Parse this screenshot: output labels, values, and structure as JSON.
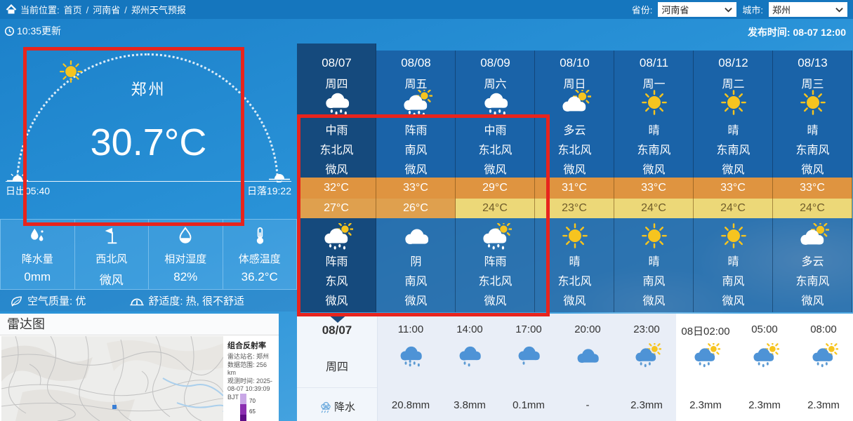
{
  "topbar": {
    "location_label": "当前位置:",
    "breadcrumb": [
      "首页",
      "河南省",
      "郑州天气预报"
    ],
    "separator": "/",
    "province_label": "省份:",
    "province_value": "河南省",
    "city_label": "城市:",
    "city_value": "郑州"
  },
  "statusbar": {
    "update_time": "10:35更新",
    "publish_text": "发布时间: 08-07 12:00"
  },
  "current": {
    "city": "郑州",
    "temperature": "30.7°C",
    "sunrise": "日出05:40",
    "sunset": "日落19:22",
    "stats": [
      {
        "icon": "raindrop-icon",
        "label": "降水量",
        "value": "0mm"
      },
      {
        "icon": "wind-vane-icon",
        "label": "西北风",
        "value": "微风"
      },
      {
        "icon": "humidity-icon",
        "label": "相对湿度",
        "value": "82%"
      },
      {
        "icon": "thermometer-icon",
        "label": "体感温度",
        "value": "36.2°C"
      }
    ],
    "air_quality": "空气质量: 优",
    "comfort": "舒适度: 热, 很不舒适"
  },
  "radar": {
    "title": "雷达图",
    "legend_title": "组合反射率",
    "rows": [
      {
        "label": "雷达站名:",
        "value": "郑州"
      },
      {
        "label": "数据范围:",
        "value": "256 km"
      },
      {
        "label": "观测时间:",
        "value": "2025-08-07 10:39:09 BJT"
      }
    ],
    "scale_labels": [
      "70",
      "65"
    ]
  },
  "forecast": {
    "days": [
      {
        "date": "08/07",
        "weekday": "周四",
        "selected": true,
        "day_icon": "rain-cloud",
        "day_cond": "中雨",
        "day_wind": "东北风",
        "day_lvl": "微风",
        "high": "32°C",
        "low": "27°C",
        "low_style": "orange",
        "night_icon": "rain-cloud-sun",
        "night_cond": "阵雨",
        "night_wind": "东风",
        "night_lvl": "微风"
      },
      {
        "date": "08/08",
        "weekday": "周五",
        "selected": false,
        "day_icon": "rain-cloud-sun",
        "day_cond": "阵雨",
        "day_wind": "南风",
        "day_lvl": "微风",
        "high": "33°C",
        "low": "26°C",
        "low_style": "orange",
        "night_icon": "cloud",
        "night_cond": "阴",
        "night_wind": "南风",
        "night_lvl": "微风"
      },
      {
        "date": "08/09",
        "weekday": "周六",
        "selected": false,
        "day_icon": "rain-cloud",
        "day_cond": "中雨",
        "day_wind": "东北风",
        "day_lvl": "微风",
        "high": "29°C",
        "low": "24°C",
        "low_style": "yellow",
        "night_icon": "rain-cloud-sun",
        "night_cond": "阵雨",
        "night_wind": "东北风",
        "night_lvl": "微风"
      },
      {
        "date": "08/10",
        "weekday": "周日",
        "selected": false,
        "day_icon": "cloud-sun",
        "day_cond": "多云",
        "day_wind": "东北风",
        "day_lvl": "微风",
        "high": "31°C",
        "low": "23°C",
        "low_style": "yellow",
        "night_icon": "sun",
        "night_cond": "晴",
        "night_wind": "东北风",
        "night_lvl": "微风"
      },
      {
        "date": "08/11",
        "weekday": "周一",
        "selected": false,
        "day_icon": "sun",
        "day_cond": "晴",
        "day_wind": "东南风",
        "day_lvl": "微风",
        "high": "33°C",
        "low": "24°C",
        "low_style": "yellow",
        "night_icon": "sun",
        "night_cond": "晴",
        "night_wind": "南风",
        "night_lvl": "微风"
      },
      {
        "date": "08/12",
        "weekday": "周二",
        "selected": false,
        "day_icon": "sun",
        "day_cond": "晴",
        "day_wind": "东南风",
        "day_lvl": "微风",
        "high": "33°C",
        "low": "24°C",
        "low_style": "yellow",
        "night_icon": "sun",
        "night_cond": "晴",
        "night_wind": "南风",
        "night_lvl": "微风"
      },
      {
        "date": "08/13",
        "weekday": "周三",
        "selected": false,
        "day_icon": "sun",
        "day_cond": "晴",
        "day_wind": "东南风",
        "day_lvl": "微风",
        "high": "33°C",
        "low": "24°C",
        "low_style": "yellow",
        "night_icon": "cloud-sun",
        "night_cond": "多云",
        "night_wind": "东南风",
        "night_lvl": "微风"
      }
    ]
  },
  "hourly": {
    "date": "08/07",
    "weekday": "周四",
    "row_label": "降水",
    "slots": [
      {
        "time": "11:00",
        "icon": "rain-heavy",
        "value": "20.8mm",
        "tint": true
      },
      {
        "time": "14:00",
        "icon": "rain-medium",
        "value": "3.8mm",
        "tint": true
      },
      {
        "time": "17:00",
        "icon": "rain-light",
        "value": "0.1mm",
        "tint": true
      },
      {
        "time": "20:00",
        "icon": "blue-cloud",
        "value": "-",
        "tint": true
      },
      {
        "time": "23:00",
        "icon": "rain-sun",
        "value": "2.3mm",
        "tint": true
      },
      {
        "time": "08日02:00",
        "icon": "rain-sun",
        "value": "2.3mm",
        "tint": false
      },
      {
        "time": "05:00",
        "icon": "rain-sun",
        "value": "2.3mm",
        "tint": false
      },
      {
        "time": "08:00",
        "icon": "rain-sun",
        "value": "2.3mm",
        "tint": false
      }
    ]
  },
  "colors": {
    "annotation": "#e8241d",
    "topbar": "#1576be",
    "column_normal": "#1a63a8",
    "column_selected": "#154a7d",
    "high_temp_row": "#df9440",
    "low_temp_orange": "#dfa04e",
    "low_temp_yellow": "#ecd878",
    "sun": "#f6c41f",
    "hourly_cloud": "#4e93d6"
  }
}
